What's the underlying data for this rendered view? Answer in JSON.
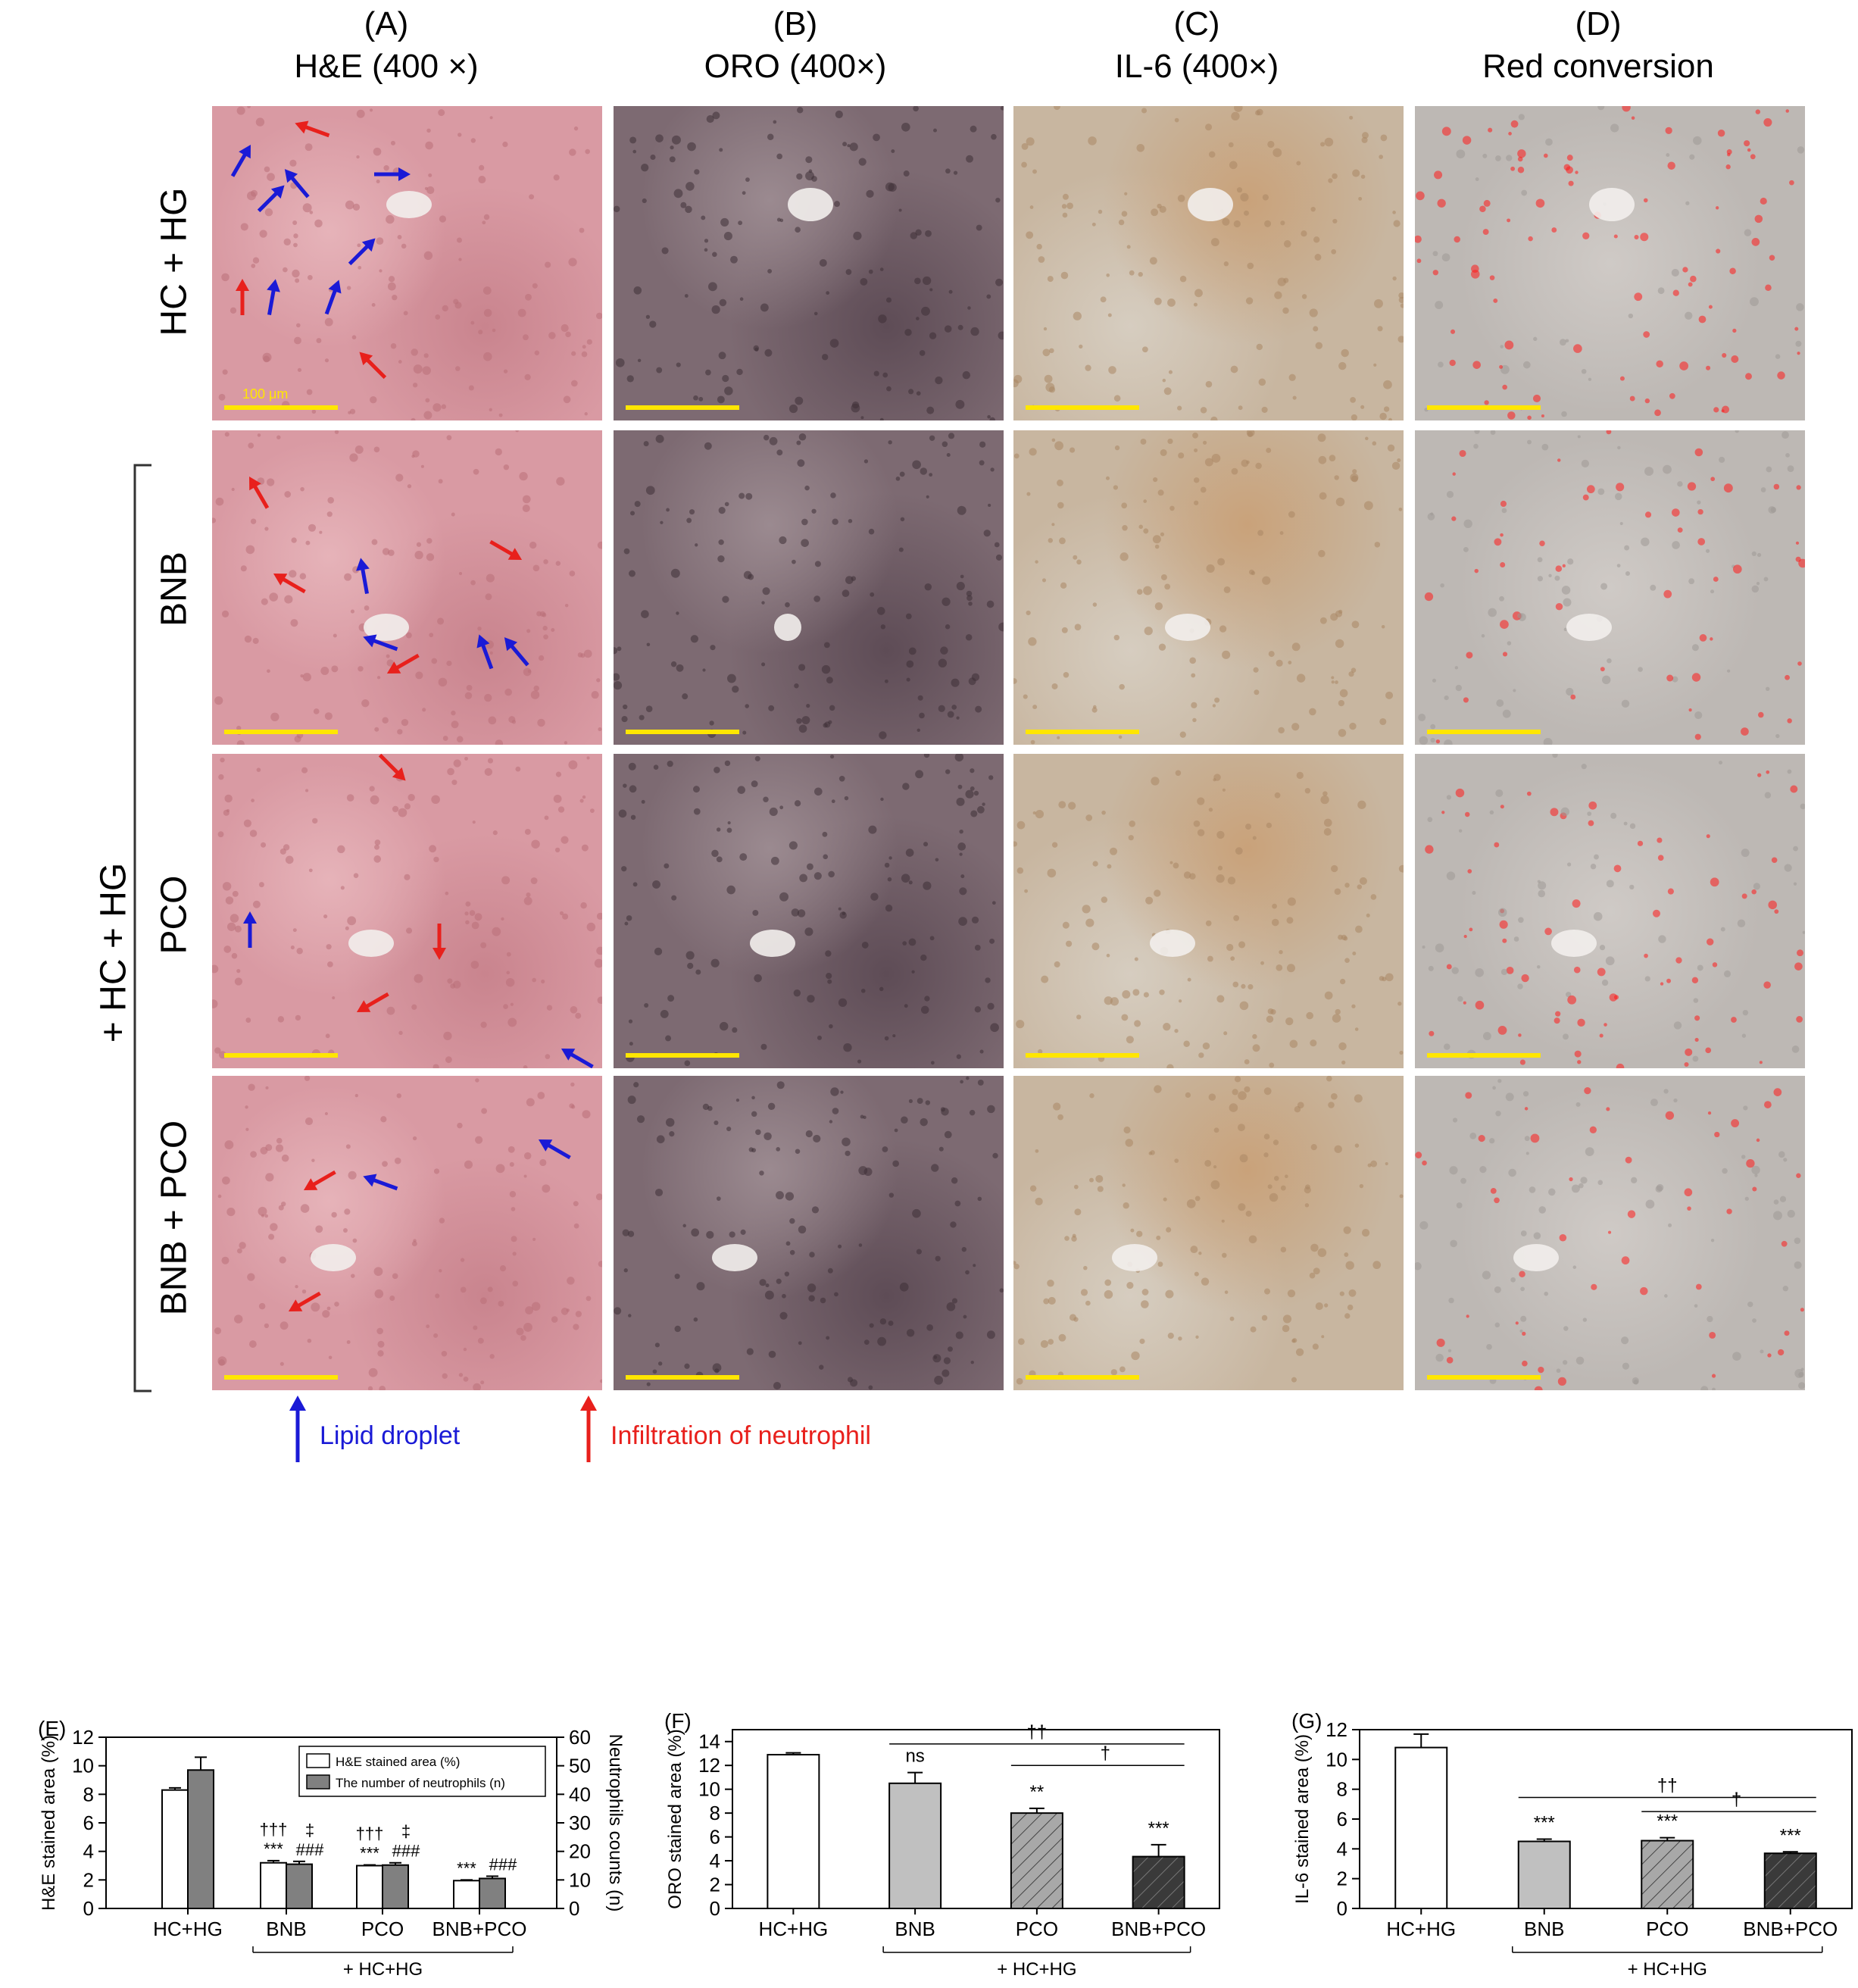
{
  "columns": [
    {
      "letter": "(A)",
      "title": "H&E (400 ×)"
    },
    {
      "letter": "(B)",
      "title": "ORO (400×)"
    },
    {
      "letter": "(C)",
      "title": "IL-6 (400×)"
    },
    {
      "letter": "(D)",
      "title": "Red conversion"
    }
  ],
  "rows": [
    "HC + HG",
    "BNB",
    "PCO",
    "BNB + PCO"
  ],
  "group_label": "+ HC + HG",
  "scale_bar_label": "100 μm",
  "arrow_legend": {
    "blue": {
      "label": "Lipid droplet",
      "color": "#1a1ad6"
    },
    "red": {
      "label": "Infiltration of neutrophil",
      "color": "#e8201c"
    }
  },
  "colors": {
    "he_tissue": "#d99aa3",
    "oro_tissue": "#7d6a72",
    "il6_tissue": "#c8b6a0",
    "red_overlay": "#ff1a1a",
    "scale_bar": "#ffe600"
  },
  "chart_data": [
    {
      "panel": "(E)",
      "type": "bar",
      "categories": [
        "HC+HG",
        "BNB",
        "PCO",
        "BNB+PCO"
      ],
      "group_label": "+ HC+HG",
      "ylabel": "H&E stained area (%)",
      "y2label": "Neutrophils counts (n)",
      "ylim": [
        0,
        12
      ],
      "y2lim": [
        0,
        60
      ],
      "yticks": [
        0,
        2,
        4,
        6,
        8,
        10,
        12
      ],
      "y2ticks": [
        0,
        10,
        20,
        30,
        40,
        50,
        60
      ],
      "series": [
        {
          "name": "H&E stained area (%)",
          "axis": "left",
          "color": "#ffffff",
          "values": [
            8.3,
            3.2,
            3.0,
            1.95
          ],
          "errors": [
            0.15,
            0.15,
            0.05,
            0.05
          ]
        },
        {
          "name": "The number of neutrophils (n)",
          "axis": "right",
          "color": "#808080",
          "values": [
            48.5,
            15.5,
            15.2,
            10.5
          ],
          "errors": [
            4.5,
            1.0,
            0.8,
            0.8
          ]
        }
      ],
      "annotations": [
        {
          "category": "BNB",
          "series": 0,
          "lines": [
            "†††",
            "***"
          ]
        },
        {
          "category": "BNB",
          "series": 1,
          "lines": [
            "‡",
            "###"
          ]
        },
        {
          "category": "PCO",
          "series": 0,
          "lines": [
            "†††",
            "***"
          ]
        },
        {
          "category": "PCO",
          "series": 1,
          "lines": [
            "‡",
            "###"
          ]
        },
        {
          "category": "BNB+PCO",
          "series": 0,
          "lines": [
            "***"
          ]
        },
        {
          "category": "BNB+PCO",
          "series": 1,
          "lines": [
            "###"
          ]
        }
      ],
      "legend_position": "top-right"
    },
    {
      "panel": "(F)",
      "type": "bar",
      "categories": [
        "HC+HG",
        "BNB",
        "PCO",
        "BNB+PCO"
      ],
      "group_label": "+ HC+HG",
      "ylabel": "ORO stained area (%)",
      "ylim": [
        0,
        15
      ],
      "yticks": [
        0,
        2,
        4,
        6,
        8,
        10,
        12,
        14
      ],
      "values": [
        12.9,
        10.5,
        8.0,
        4.35
      ],
      "errors": [
        0.15,
        0.9,
        0.4,
        1.0
      ],
      "fills": [
        "white",
        "lightgray",
        "hatched-gray",
        "hatched-dark"
      ],
      "labels": [
        "",
        "ns",
        "**",
        "***"
      ],
      "brackets": [
        {
          "from": "BNB",
          "to": "BNB+PCO",
          "label": "††"
        },
        {
          "from": "PCO",
          "to": "BNB+PCO",
          "label": "†"
        }
      ]
    },
    {
      "panel": "(G)",
      "type": "bar",
      "categories": [
        "HC+HG",
        "BNB",
        "PCO",
        "BNB+PCO"
      ],
      "group_label": "+ HC+HG",
      "ylabel": "IL-6 stained area (%)",
      "ylim": [
        0,
        12
      ],
      "yticks": [
        0,
        2,
        4,
        6,
        8,
        10,
        12
      ],
      "values": [
        10.8,
        4.5,
        4.55,
        3.7
      ],
      "errors": [
        0.9,
        0.15,
        0.2,
        0.1
      ],
      "fills": [
        "white",
        "lightgray",
        "hatched-gray",
        "hatched-dark"
      ],
      "labels": [
        "",
        "***",
        "***",
        "***"
      ],
      "brackets": [
        {
          "from": "BNB",
          "to": "BNB+PCO",
          "label": "††"
        },
        {
          "from": "PCO",
          "to": "BNB+PCO",
          "label": "†"
        }
      ]
    }
  ]
}
